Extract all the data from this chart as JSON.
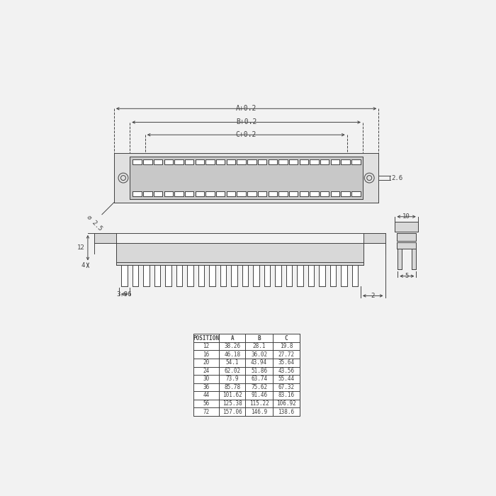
{
  "bg_color": "#f2f2f2",
  "lc": "#444444",
  "table_headers": [
    "POSITION",
    "A",
    "B",
    "C"
  ],
  "table_rows": [
    [
      "12",
      "38.26",
      "28.1",
      "19.8"
    ],
    [
      "16",
      "46.18",
      "36.02",
      "27.72"
    ],
    [
      "20",
      "54.1",
      "43.94",
      "35.64"
    ],
    [
      "24",
      "62.02",
      "51.86",
      "43.56"
    ],
    [
      "30",
      "73.9",
      "63.74",
      "55.44"
    ],
    [
      "36",
      "85.78",
      "75.62",
      "67.32"
    ],
    [
      "44",
      "101.62",
      "91.46",
      "83.16"
    ],
    [
      "56",
      "125.38",
      "115.22",
      "106.92"
    ],
    [
      "72",
      "157.06",
      "146.9",
      "138.6"
    ]
  ],
  "A_label": "A+0.2",
  "B_label": "B+0.2",
  "C_label": "C+0.2",
  "dim_26": "2.6",
  "dim_396": "3.96",
  "dim_2": "2",
  "dim_12": "12",
  "dim_4": "4",
  "dim_265": "∅ 2.5",
  "dim_10": "10",
  "dim_5": "5"
}
